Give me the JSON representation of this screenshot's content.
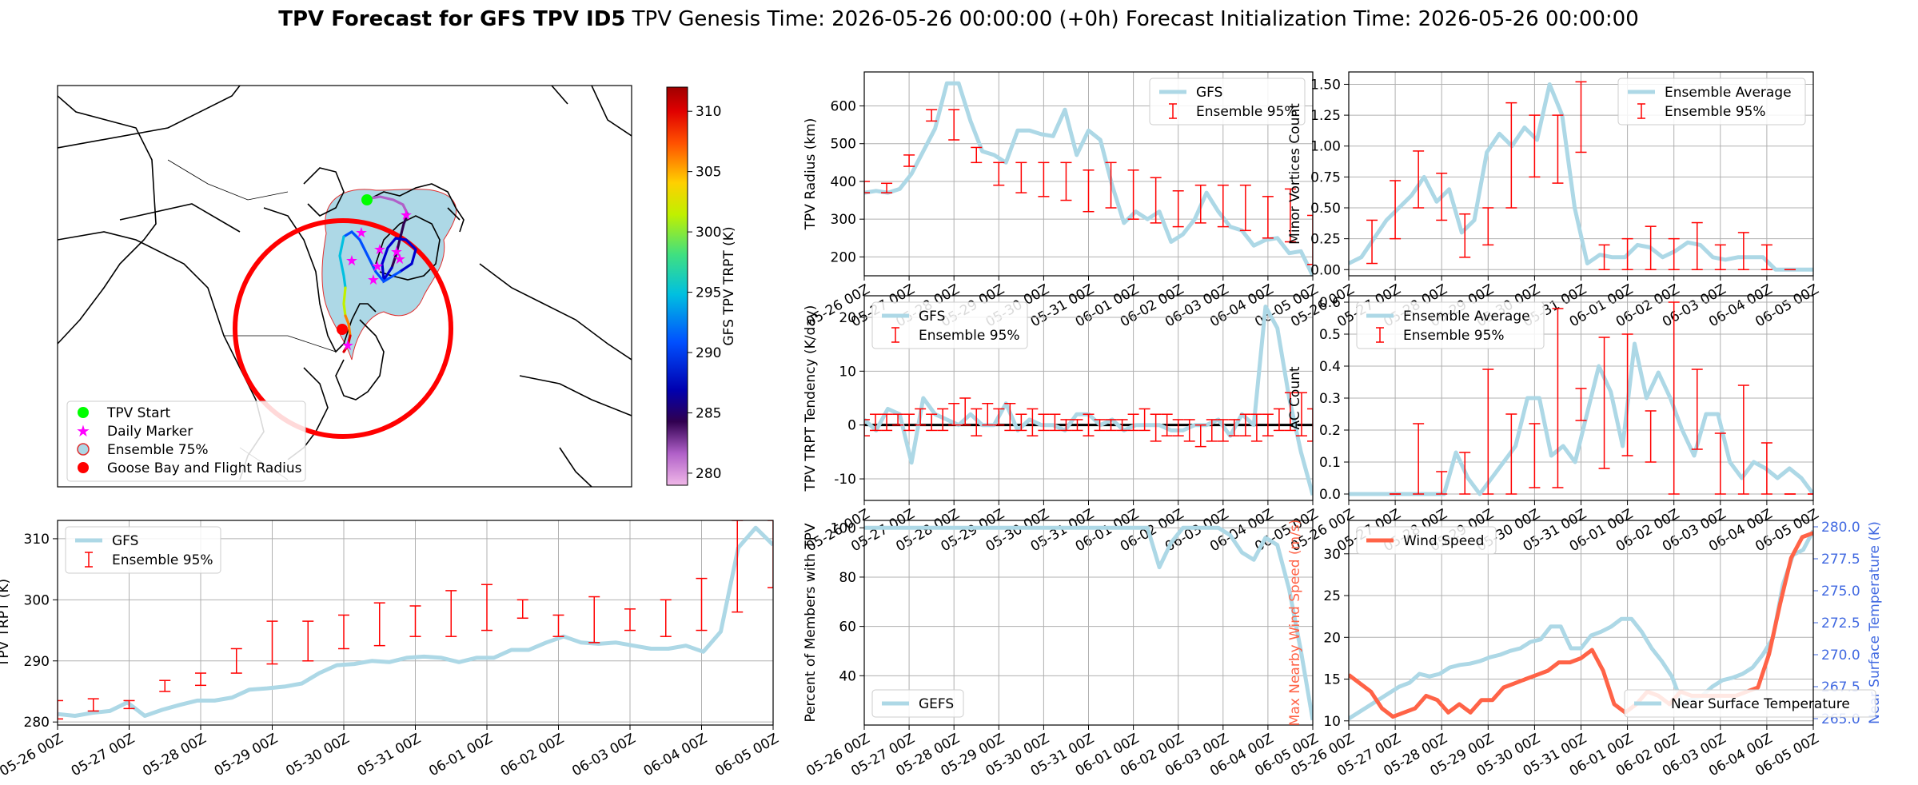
{
  "figure": {
    "title_bold": "TPV Forecast for GFS TPV ID5",
    "title_rest": "TPV Genesis Time: 2026-05-26 00:00:00 (+0h)   Forecast Initialization Time: 2026-05-26 00:00:00"
  },
  "time_ticks": [
    "05-26 00Z",
    "05-27 00Z",
    "05-28 00Z",
    "05-29 00Z",
    "05-30 00Z",
    "05-31 00Z",
    "06-01 00Z",
    "06-02 00Z",
    "06-03 00Z",
    "06-04 00Z",
    "06-05 00Z"
  ],
  "colors": {
    "gfs_line": "#add8e6",
    "ensemble_bar": "#ff0000",
    "wind_line": "#ff6347",
    "temp_axis": "#4169e1",
    "zero_line": "#000000",
    "ensemble_fill": "#add8e6"
  },
  "map": {
    "colorbar_label": "GFS TPV TRPT (K)",
    "colorbar_ticks": [
      "280",
      "285",
      "290",
      "295",
      "300",
      "305",
      "310"
    ],
    "colorbar_range": [
      279,
      312
    ],
    "legend": [
      {
        "label": "TPV Start",
        "marker": "circle",
        "color": "#00ff00"
      },
      {
        "label": "Daily Marker",
        "marker": "star",
        "color": "#ff00ff"
      },
      {
        "label": "Ensemble 75%",
        "marker": "circle-outline",
        "color": "#add8e6"
      },
      {
        "label": "Goose Bay and Flight Radius",
        "marker": "circle",
        "color": "#ff0000"
      }
    ]
  },
  "chart_data": [
    {
      "id": "radius",
      "type": "line",
      "ylabel": "TPV Radius (km)",
      "ylim": [
        150,
        690
      ],
      "yticks": [
        200,
        300,
        400,
        500,
        600
      ],
      "legend_position": "upper right",
      "legend": [
        "GFS",
        "Ensemble 95%"
      ],
      "gfs_y": [
        370,
        375,
        370,
        380,
        420,
        480,
        540,
        660,
        660,
        560,
        480,
        470,
        450,
        535,
        535,
        525,
        520,
        590,
        470,
        535,
        510,
        390,
        290,
        320,
        300,
        320,
        240,
        260,
        300,
        370,
        320,
        280,
        270,
        230,
        245,
        250,
        210,
        215,
        150
      ],
      "ens_x": [
        0,
        0.5,
        1,
        1.5,
        2,
        2.5,
        3,
        3.5,
        4,
        4.5,
        5,
        5.5,
        6,
        6.5,
        7,
        7.5,
        8,
        8.5,
        9,
        9.5,
        10
      ],
      "ens_lo": [
        370,
        370,
        440,
        560,
        510,
        450,
        390,
        370,
        360,
        350,
        320,
        330,
        300,
        290,
        280,
        290,
        280,
        270,
        250,
        240,
        180
      ],
      "ens_hi": [
        400,
        395,
        470,
        590,
        590,
        490,
        450,
        450,
        450,
        450,
        430,
        450,
        430,
        410,
        375,
        390,
        390,
        390,
        360,
        380,
        310
      ]
    },
    {
      "id": "tendency",
      "type": "line",
      "ylabel": "TPV TRPT Tendency (K/day)",
      "ylim": [
        -14,
        24
      ],
      "yticks": [
        -10,
        0,
        10,
        20
      ],
      "legend_position": "upper left",
      "legend": [
        "GFS",
        "Ensemble 95%"
      ],
      "zero_line": 0,
      "gfs_y": [
        1,
        -1,
        3,
        2,
        -7,
        5,
        2,
        1,
        0,
        2,
        0,
        0,
        4,
        -1,
        1,
        0,
        0,
        -1,
        2,
        2,
        0,
        1,
        -1,
        0,
        0,
        0,
        -1,
        -1,
        0,
        0,
        1,
        -2,
        2,
        0,
        22,
        18,
        5,
        -5,
        -13
      ],
      "ens_x": [
        0,
        0.25,
        0.5,
        0.75,
        1,
        1.25,
        1.5,
        1.75,
        2,
        2.25,
        2.5,
        2.75,
        3,
        3.25,
        3.5,
        3.75,
        4,
        4.25,
        4.5,
        4.75,
        5,
        5.25,
        5.5,
        5.75,
        6,
        6.25,
        6.5,
        6.75,
        7,
        7.25,
        7.5,
        7.75,
        8,
        8.25,
        8.5,
        8.75,
        9,
        9.25,
        9.5,
        9.75,
        10
      ],
      "ens_lo": [
        -2,
        -1,
        -1,
        0,
        -1,
        0,
        -1,
        -1,
        0,
        0,
        -2,
        0,
        0,
        -1,
        -1,
        -2,
        -1,
        -1,
        -1,
        -1,
        -2,
        -1,
        -1,
        -1,
        -1,
        -1,
        -3,
        -2,
        -2,
        -3,
        -4,
        -3,
        -3,
        -2,
        -2,
        -3,
        -2,
        -1,
        -1,
        -2,
        -3
      ],
      "ens_hi": [
        1,
        2,
        2,
        2,
        2,
        3,
        2,
        3,
        4,
        5,
        3,
        4,
        3,
        4,
        2,
        3,
        2,
        2,
        1,
        1,
        2,
        1,
        1,
        1,
        2,
        3,
        2,
        2,
        1,
        1,
        0,
        1,
        1,
        1,
        2,
        2,
        2,
        3,
        6,
        6,
        3
      ]
    },
    {
      "id": "percent",
      "type": "line",
      "ylabel": "Percent of Members with TPV",
      "ylim": [
        20,
        103
      ],
      "yticks": [
        40,
        60,
        80,
        100
      ],
      "legend_position": "lower left",
      "legend": [
        "GEFS"
      ],
      "gefs_y": [
        100,
        100,
        100,
        100,
        100,
        100,
        100,
        100,
        100,
        100,
        100,
        100,
        100,
        100,
        100,
        100,
        100,
        100,
        100,
        100,
        100,
        100,
        100,
        100,
        100,
        84,
        94,
        100,
        100,
        100,
        100,
        97,
        90,
        87,
        96,
        93,
        75,
        50,
        22
      ]
    },
    {
      "id": "trpt",
      "type": "line",
      "ylabel": "TPV TRPT (K)",
      "ylim": [
        279.5,
        313
      ],
      "yticks": [
        280,
        290,
        300,
        310
      ],
      "legend_position": "upper left",
      "legend": [
        "GFS",
        "Ensemble 95%"
      ],
      "gfs_y": [
        281.3,
        281,
        281.5,
        281.8,
        283.2,
        281,
        282,
        282.8,
        283.5,
        283.5,
        284,
        285.3,
        285.5,
        285.8,
        286.3,
        288,
        289.3,
        289.5,
        290,
        289.8,
        290.5,
        290.7,
        290.5,
        289.8,
        290.5,
        290.5,
        291.8,
        291.8,
        293,
        294,
        293,
        292.8,
        293,
        292.5,
        292,
        292,
        292.5,
        291.5,
        294.8,
        308.5,
        311.8,
        309
      ],
      "ens_x": [
        0,
        0.5,
        1,
        1.5,
        2,
        2.5,
        3,
        3.5,
        4,
        4.5,
        5,
        5.5,
        6,
        6.5,
        7,
        7.5,
        8,
        8.5,
        9,
        9.5,
        10
      ],
      "ens_lo": [
        280.5,
        281.8,
        282.2,
        285,
        286,
        288,
        289.5,
        290,
        292,
        292.5,
        294,
        294,
        295,
        297,
        294,
        293,
        295,
        294,
        295,
        298,
        302
      ],
      "ens_hi": [
        283.5,
        283.8,
        283.5,
        286.8,
        288,
        292,
        296.5,
        296.5,
        297.5,
        299.5,
        299,
        301.5,
        302.5,
        300,
        297.5,
        300.5,
        298.5,
        300,
        303.5,
        313,
        313
      ]
    },
    {
      "id": "minor",
      "type": "line",
      "ylabel": "Minor Vortices Count",
      "ylim": [
        -0.05,
        1.6
      ],
      "yticks": [
        "0.00",
        "0.25",
        "0.50",
        "0.75",
        "1.00",
        "1.25",
        "1.50"
      ],
      "legend_position": "upper right",
      "legend": [
        "Ensemble Average",
        "Ensemble 95%"
      ],
      "avg_y": [
        0.05,
        0.1,
        0.25,
        0.4,
        0.5,
        0.6,
        0.75,
        0.55,
        0.65,
        0.3,
        0.4,
        0.95,
        1.1,
        1,
        1.15,
        1.05,
        1.5,
        1.25,
        0.5,
        0.05,
        0.12,
        0.1,
        0.1,
        0.2,
        0.18,
        0.1,
        0.15,
        0.22,
        0.2,
        0.1,
        0.08,
        0.1,
        0.1,
        0.1,
        0,
        0,
        0,
        0
      ],
      "ens_x": [
        0.5,
        1,
        1.5,
        2,
        2.5,
        3,
        3.5,
        4,
        4.5,
        5,
        5.5,
        6,
        6.5,
        7,
        7.5,
        8,
        8.5,
        9,
        9.5
      ],
      "ens_lo": [
        0.05,
        0.25,
        0.5,
        0.4,
        0.1,
        0.2,
        0.5,
        0.75,
        0.7,
        0.95,
        0,
        0,
        0,
        0,
        0,
        0,
        0,
        0,
        0
      ],
      "ens_hi": [
        0.4,
        0.72,
        0.96,
        0.78,
        0.45,
        0.5,
        1.35,
        1.25,
        1.25,
        1.52,
        0.2,
        0.25,
        0.35,
        0.25,
        0.38,
        0.2,
        0.3,
        0.2,
        0
      ]
    },
    {
      "id": "ac",
      "type": "line",
      "ylabel": "AC Count",
      "ylim": [
        -0.02,
        0.62
      ],
      "yticks": [
        "0.0",
        "0.1",
        "0.2",
        "0.3",
        "0.4",
        "0.5",
        "0.6"
      ],
      "legend_position": "upper left",
      "legend": [
        "Ensemble Average",
        "Ensemble 95%"
      ],
      "avg_y": [
        0,
        0,
        0,
        0,
        0,
        0,
        0,
        0,
        0,
        0.13,
        0.05,
        0,
        0.05,
        0.1,
        0.15,
        0.3,
        0.3,
        0.12,
        0.15,
        0.1,
        0.25,
        0.4,
        0.32,
        0.15,
        0.47,
        0.3,
        0.38,
        0.3,
        0.2,
        0.12,
        0.25,
        0.25,
        0.1,
        0.05,
        0.1,
        0.08,
        0.05,
        0.08,
        0.05,
        0
      ],
      "ens_x": [
        1,
        1.5,
        2,
        2.5,
        3,
        3.5,
        4,
        4.5,
        5,
        5.5,
        6,
        6.5,
        7,
        7.5,
        8,
        8.5,
        9,
        9.5,
        10
      ],
      "ens_lo": [
        0,
        0,
        0,
        0,
        0,
        0,
        0.02,
        0.02,
        0.23,
        0.08,
        0.12,
        0.1,
        0,
        0.14,
        0,
        0,
        0,
        0,
        0
      ],
      "ens_hi": [
        0,
        0.22,
        0.07,
        0.13,
        0.39,
        0.25,
        0.22,
        0.58,
        0.33,
        0.49,
        0.5,
        0.26,
        0.6,
        0.39,
        0.19,
        0.34,
        0.16,
        0,
        0
      ]
    },
    {
      "id": "wind",
      "type": "line",
      "ylabel": "Max Nearby Wind Speed (m/s)",
      "ylabel_right": "Near Surface Temperature (K)",
      "ylim": [
        9.5,
        34
      ],
      "yticks": [
        10,
        15,
        20,
        25,
        30
      ],
      "ylim_right": [
        264.5,
        280.5
      ],
      "yticks_right": [
        "265.0",
        "267.5",
        "270.0",
        "272.5",
        "275.0",
        "277.5",
        "280.0"
      ],
      "legend": [
        "Wind Speed",
        "Near Surface Temperature"
      ],
      "legend_positions": [
        "upper left",
        "lower right"
      ],
      "wind_y": [
        15.5,
        14.5,
        13.5,
        11.5,
        10.5,
        11,
        11.5,
        13,
        12.5,
        11,
        12,
        11,
        12.5,
        12.5,
        14,
        14.5,
        15,
        15.5,
        16,
        17,
        17,
        17.5,
        18.5,
        16,
        12,
        11,
        12,
        13.5,
        13,
        12,
        13.5,
        13,
        13,
        13,
        13,
        13,
        13.5,
        14,
        18,
        24,
        29.5,
        32,
        32.5
      ],
      "temp_y": [
        265,
        265.5,
        266,
        266.5,
        267,
        267.5,
        267.8,
        268.5,
        268.3,
        268.5,
        269,
        269.2,
        269.3,
        269.5,
        269.8,
        270,
        270.3,
        270.5,
        271,
        271.2,
        272.2,
        272.2,
        270.5,
        270.5,
        271.5,
        271.8,
        272.2,
        272.8,
        272.8,
        271.8,
        270.5,
        269.5,
        268.3,
        266.2,
        266.5,
        266.8,
        267.5,
        268,
        268.2,
        268.5,
        269,
        270,
        271.3,
        275.5,
        277.8,
        278.2,
        279.7
      ]
    }
  ]
}
